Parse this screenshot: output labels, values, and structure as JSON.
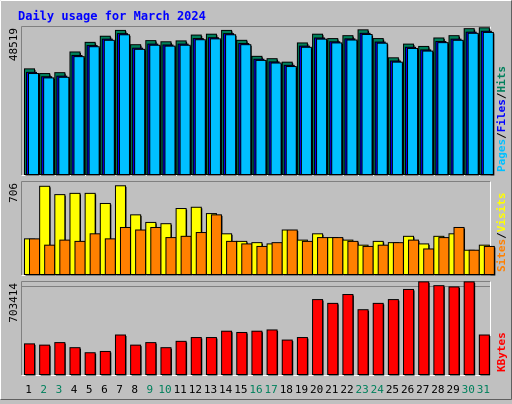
{
  "chart_data": [
    {
      "type": "bar",
      "title": "Daily usage for March 2024",
      "categories": [
        "1",
        "2",
        "3",
        "4",
        "5",
        "6",
        "7",
        "8",
        "9",
        "10",
        "11",
        "12",
        "13",
        "14",
        "15",
        "16",
        "17",
        "18",
        "19",
        "20",
        "21",
        "22",
        "23",
        "24",
        "25",
        "26",
        "27",
        "28",
        "29",
        "30",
        "31"
      ],
      "weekend_days": [
        "2",
        "3",
        "9",
        "10",
        "16",
        "17",
        "23",
        "24",
        "30",
        "31"
      ],
      "panels": [
        {
          "name": "hits-files-pages",
          "max_label": "48519",
          "ylim": [
            0,
            50800
          ],
          "axis_labels": [
            "Pages",
            "Files",
            "Hits"
          ],
          "series": [
            {
              "name": "Hits",
              "color": "#00805c",
              "values": [
                36600,
                35000,
                35300,
                42400,
                45700,
                47800,
                49800,
                44900,
                46300,
                45900,
                46200,
                48200,
                48500,
                49800,
                46400,
                40900,
                40100,
                38900,
                45500,
                48500,
                47000,
                48000,
                50000,
                47000,
                40400,
                45100,
                44300,
                47200,
                48000,
                50400,
                50700
              ]
            },
            {
              "name": "Files",
              "color": "#0000ff",
              "values": [
                35400,
                33900,
                34100,
                41200,
                44600,
                46800,
                48700,
                43700,
                45100,
                44800,
                45100,
                47000,
                47300,
                48700,
                45300,
                39900,
                39000,
                37800,
                44400,
                47200,
                45900,
                46900,
                48800,
                45800,
                39300,
                44000,
                43100,
                46000,
                46800,
                49200,
                49500
              ]
            },
            {
              "name": "Pages",
              "color": "#00c0ff",
              "values": [
                35000,
                33500,
                33700,
                40800,
                44200,
                46400,
                48300,
                43300,
                44700,
                44400,
                44700,
                46600,
                46900,
                48300,
                44900,
                39500,
                38600,
                37400,
                44000,
                46800,
                45500,
                46500,
                48400,
                45400,
                38900,
                43600,
                42700,
                45600,
                46400,
                48800,
                49100
              ]
            }
          ]
        },
        {
          "name": "visits-sites",
          "max_label": "706",
          "ylim": [
            0,
            736
          ],
          "axis_labels": [
            "Sites",
            "Visits"
          ],
          "series": [
            {
              "name": "Visits",
              "color": "#ffff00",
              "values": [
                290,
                706,
                640,
                650,
                650,
                570,
                710,
                480,
                420,
                410,
                530,
                540,
                490,
                330,
                270,
                260,
                250,
                360,
                280,
                330,
                300,
                280,
                240,
                270,
                260,
                310,
                250,
                310,
                330,
                200,
                240
              ]
            },
            {
              "name": "Sites",
              "color": "#ff8000",
              "values": [
                290,
                240,
                280,
                270,
                330,
                290,
                380,
                360,
                380,
                300,
                310,
                340,
                480,
                270,
                250,
                230,
                260,
                360,
                270,
                300,
                300,
                270,
                230,
                240,
                260,
                280,
                210,
                300,
                380,
                200,
                230
              ]
            }
          ]
        },
        {
          "name": "kbytes",
          "max_label": "703414",
          "ylim": [
            0,
            735000
          ],
          "axis_labels": [
            "KBytes"
          ],
          "series": [
            {
              "name": "KBytes",
              "color": "#ff0000",
              "values": [
                250000,
                240000,
                260000,
                220000,
                180000,
                190000,
                320000,
                240000,
                260000,
                220000,
                270000,
                300000,
                300000,
                350000,
                340000,
                350000,
                360000,
                280000,
                300000,
                600000,
                570000,
                640000,
                520000,
                570000,
                600000,
                680000,
                740000,
                710000,
                700000,
                740000,
                320000
              ]
            }
          ]
        }
      ]
    }
  ]
}
